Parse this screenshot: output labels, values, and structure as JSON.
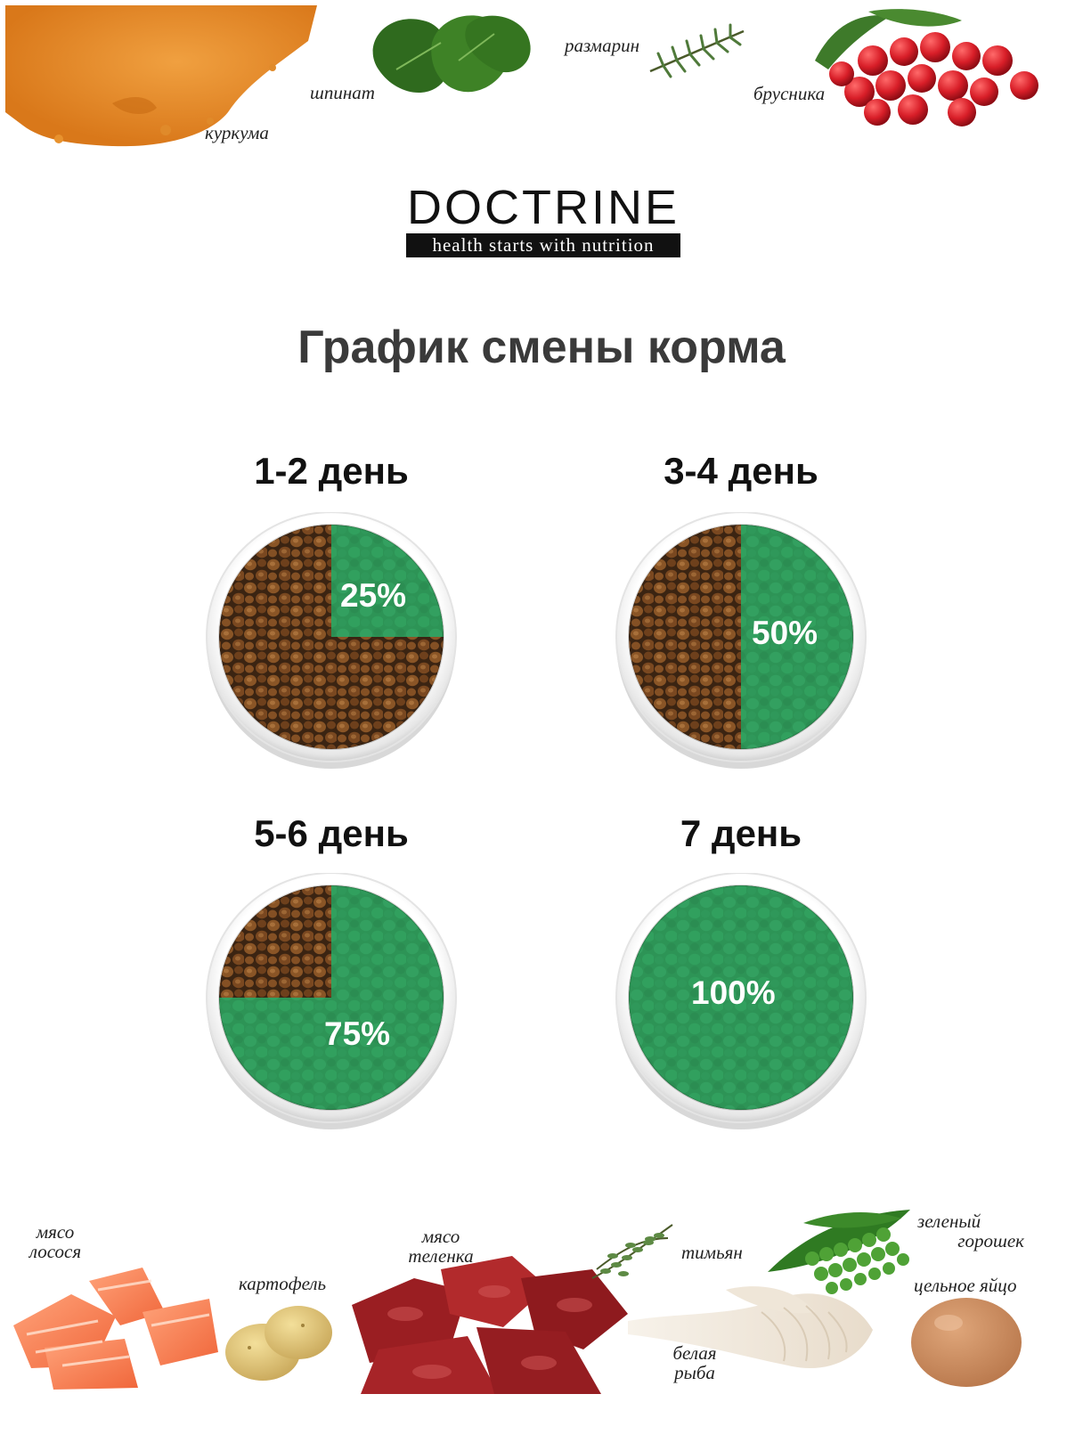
{
  "ingredients_top": [
    {
      "label": "куркума"
    },
    {
      "label": "шпинат"
    },
    {
      "label": "размарин"
    },
    {
      "label": "брусника"
    }
  ],
  "logo": {
    "brand": "DOCTRINE",
    "tagline": "health starts with nutrition"
  },
  "title": "График смены корма",
  "schedule": [
    {
      "day": "1-2 день",
      "percent_label": "25%",
      "new_food_fraction": 0.25
    },
    {
      "day": "3-4 день",
      "percent_label": "50%",
      "new_food_fraction": 0.5
    },
    {
      "day": "5-6 день",
      "percent_label": "75%",
      "new_food_fraction": 0.75
    },
    {
      "day": "7 день",
      "percent_label": "100%",
      "new_food_fraction": 1.0
    }
  ],
  "ingredients_bottom": [
    {
      "label_line1": "мясо",
      "label_line2": "лосося"
    },
    {
      "label_line1": "картофель"
    },
    {
      "label_line1": "мясо",
      "label_line2": "теленка"
    },
    {
      "label_line1": "тимьян"
    },
    {
      "label_line1": "белая",
      "label_line2": "рыба"
    },
    {
      "label_line1": "зеленый",
      "label_line2": "горошек"
    },
    {
      "label_line1": "цельное яйцо"
    }
  ],
  "colors": {
    "new_food_green": "#2f9a58",
    "old_food_brown": "#7a4a22",
    "bowl_rim": "#f2f2f2",
    "title_gray": "#3a3a3a"
  }
}
